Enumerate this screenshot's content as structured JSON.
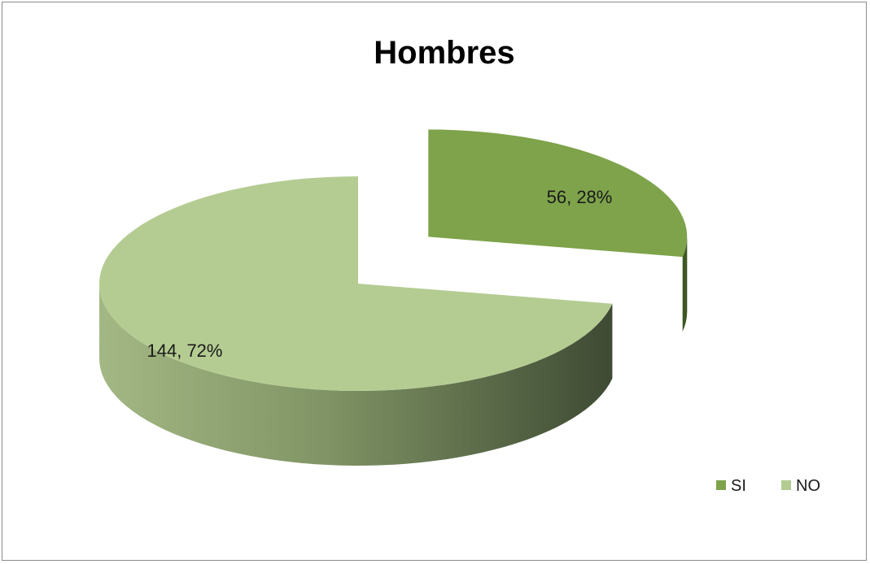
{
  "chart_data": {
    "type": "pie",
    "title": "Hombres",
    "slices": [
      {
        "name": "SI",
        "value": 56,
        "percent": 28,
        "label": "56, 28%",
        "color": "#7ea34b",
        "side_color": "#3f5722"
      },
      {
        "name": "NO",
        "value": 144,
        "percent": 72,
        "label": "144, 72%",
        "color": "#b4cc92",
        "side_color": "#4b5a3c"
      }
    ],
    "legend_position": "bottom-right",
    "style": "3d-exploded"
  }
}
